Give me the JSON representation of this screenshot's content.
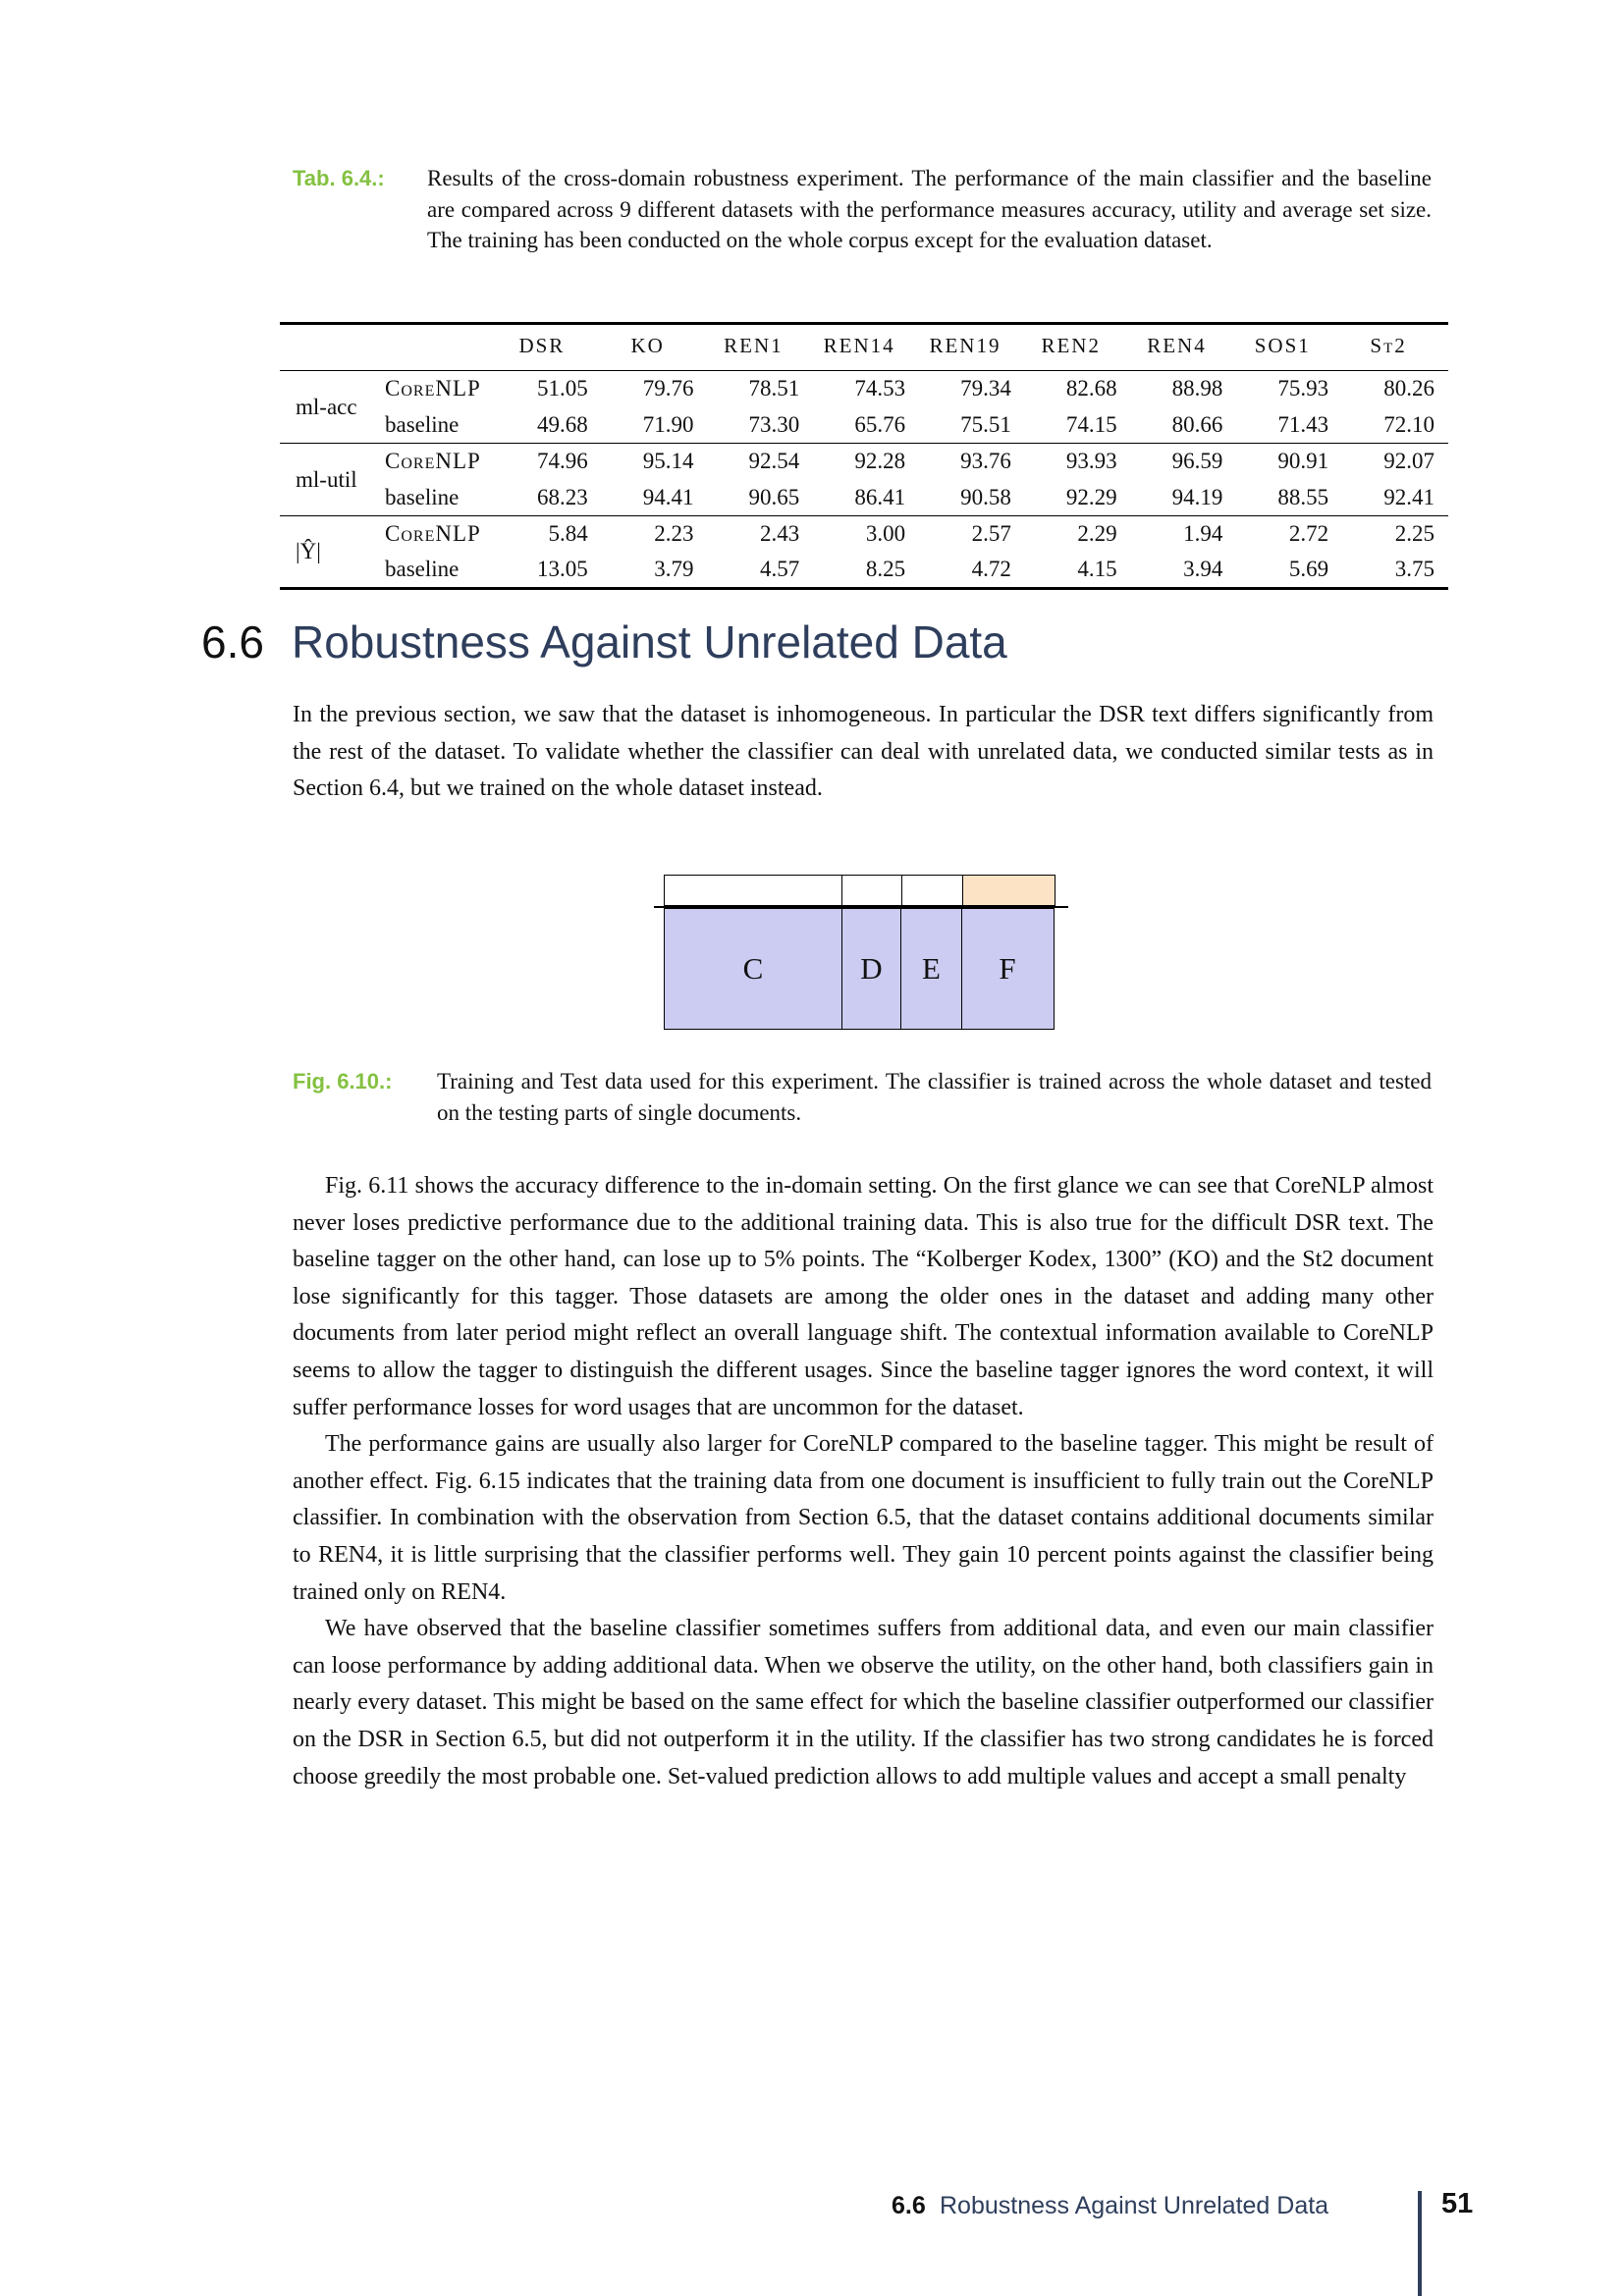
{
  "colors": {
    "accent_green": "#84c141",
    "heading_navy": "#2e3e5c",
    "train_fill": "#ccccf2",
    "test_fill": "#fde3c6"
  },
  "table_caption": {
    "label": "Tab. 6.4.:",
    "text": "Results of the cross-domain robustness experiment. The performance of the main classifier and the baseline are compared across 9 different datasets with the performance measures accuracy, utility and average set size. The training has been conducted on the whole corpus except for the evaluation dataset."
  },
  "table": {
    "columns": [
      "DSR",
      "KO",
      "REN1",
      "REN14",
      "REN19",
      "REN2",
      "REN4",
      "SOS1",
      "St2"
    ],
    "groups": [
      {
        "metric": "ml-acc",
        "rows": [
          {
            "system": "CoreNLP",
            "values": [
              "51.05",
              "79.76",
              "78.51",
              "74.53",
              "79.34",
              "82.68",
              "88.98",
              "75.93",
              "80.26"
            ]
          },
          {
            "system": "baseline",
            "values": [
              "49.68",
              "71.90",
              "73.30",
              "65.76",
              "75.51",
              "74.15",
              "80.66",
              "71.43",
              "72.10"
            ]
          }
        ]
      },
      {
        "metric": "ml-util",
        "rows": [
          {
            "system": "CoreNLP",
            "values": [
              "74.96",
              "95.14",
              "92.54",
              "92.28",
              "93.76",
              "93.93",
              "96.59",
              "90.91",
              "92.07"
            ]
          },
          {
            "system": "baseline",
            "values": [
              "68.23",
              "94.41",
              "90.65",
              "86.41",
              "90.58",
              "92.29",
              "94.19",
              "88.55",
              "92.41"
            ]
          }
        ]
      },
      {
        "metric": "|Ŷ|",
        "rows": [
          {
            "system": "CoreNLP",
            "values": [
              "5.84",
              "2.23",
              "2.43",
              "3.00",
              "2.57",
              "2.29",
              "1.94",
              "2.72",
              "2.25"
            ]
          },
          {
            "system": "baseline",
            "values": [
              "13.05",
              "3.79",
              "4.57",
              "8.25",
              "4.72",
              "4.15",
              "3.94",
              "5.69",
              "3.75"
            ]
          }
        ]
      }
    ]
  },
  "section": {
    "number": "6.6",
    "title": "Robustness Against Unrelated Data"
  },
  "paragraphs": {
    "intro": "In the previous section, we saw that the dataset is inhomogeneous. In particular the DSR text differs significantly from the rest of the dataset. To validate whether the classifier can deal with unrelated data, we conducted similar tests as in Section 6.4, but we trained on the whole dataset instead.",
    "p2": "Fig. 6.11 shows the accuracy difference to the in-domain setting. On the first glance we can see that CoreNLP almost never loses predictive performance due to the additional training data. This is also true for the difficult DSR text. The baseline tagger on the other hand, can lose up to 5% points. The “Kolberger Kodex, 1300” (KO) and the St2 document lose significantly for this tagger. Those datasets are among the older ones in the dataset and adding many other documents from later period might reflect an overall language shift. The contextual information available to CoreNLP seems to allow the tagger to distinguish the different usages. Since the baseline tagger ignores the word context, it will suffer performance losses for word usages that are uncommon for the dataset.",
    "p3": "The performance gains are usually also larger for CoreNLP compared to the baseline tagger. This might be result of another effect. Fig. 6.15 indicates that the training data from one document is insufficient to fully train out the CoreNLP classifier. In combination with the observation from Section 6.5, that the dataset contains additional documents similar to REN4, it is little surprising that the classifier performs well. They gain 10 percent points against the classifier being trained only on REN4.",
    "p4": "We have observed that the baseline classifier sometimes suffers from additional data, and even our main classifier can loose performance by adding additional data. When we observe the utility, on the other hand, both classifiers gain in nearly every dataset. This might be based on the same effect for which the baseline classifier outperformed our classifier on the DSR in Section 6.5, but did not outperform it in the utility. If the classifier has two strong candidates he is forced choose greedily the most probable one. Set-valued prediction allows to add multiple values and accept a small penalty"
  },
  "figure": {
    "blocks": [
      {
        "label": "C",
        "width": 182,
        "test_highlight": false
      },
      {
        "label": "D",
        "width": 62,
        "test_highlight": false
      },
      {
        "label": "E",
        "width": 63,
        "test_highlight": false
      },
      {
        "label": "F",
        "width": 95,
        "test_highlight": true
      }
    ],
    "caption": {
      "label": "Fig. 6.10.:",
      "text": "Training and Test data used for this experiment. The classifier is trained across the whole dataset and tested on the testing parts of single documents."
    }
  },
  "footer": {
    "section_number": "6.6",
    "section_title": "Robustness Against Unrelated Data",
    "page_number": "51"
  }
}
